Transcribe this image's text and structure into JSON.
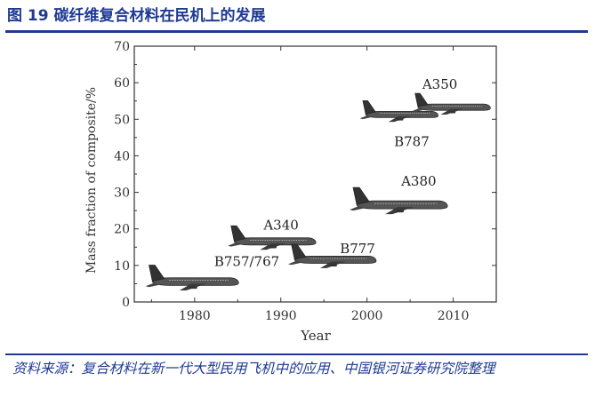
{
  "figure": {
    "title": "图 19 碳纤维复合材料在民机上的发展",
    "source": "资料来源：复合材料在新一代大型民用飞机中的应用、中国银河证券研究院整理"
  },
  "chart_data": {
    "type": "scatter",
    "xlabel": "Year",
    "ylabel": "Mass fraction of composite/%",
    "xlim": [
      1973,
      2015
    ],
    "ylim": [
      0,
      70
    ],
    "xticks": [
      1980,
      1990,
      2000,
      2010
    ],
    "yticks": [
      0,
      10,
      20,
      30,
      40,
      50,
      60,
      70
    ],
    "grid": false,
    "points": [
      {
        "label": "B757/767",
        "x": 1980,
        "y": 4
      },
      {
        "label": "A340",
        "x": 1988,
        "y": 15
      },
      {
        "label": "B777",
        "x": 1995,
        "y": 10
      },
      {
        "label": "A380",
        "x": 2005,
        "y": 25
      },
      {
        "label": "B787",
        "x": 2005,
        "y": 50
      },
      {
        "label": "A350",
        "x": 2009,
        "y": 52
      }
    ]
  }
}
